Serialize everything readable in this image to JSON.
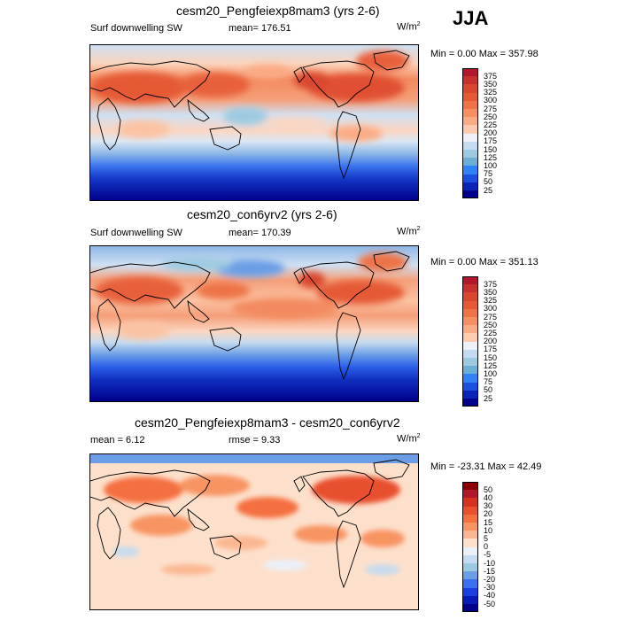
{
  "season": "JJA",
  "chart_data": [
    {
      "type": "heatmap",
      "title": "cesm20_Pengfeiexp8mam3 (yrs 2-6)",
      "left_label": "Surf downwelling SW",
      "stat_label": "mean= 176.51",
      "unit_base": "W/m",
      "unit_exp": "2",
      "minmax": "Min =   0.00 Max = 357.98",
      "mean": 176.51,
      "min": 0.0,
      "max": 357.98,
      "colorbar_levels": [
        "375",
        "350",
        "325",
        "300",
        "275",
        "250",
        "225",
        "200",
        "175",
        "150",
        "125",
        "100",
        "75",
        "50",
        "25"
      ],
      "colorbar_colors": [
        "#b2182b",
        "#c8302d",
        "#d9472f",
        "#e55a35",
        "#ee7347",
        "#f68f62",
        "#fbab84",
        "#fdcbaf",
        "#eef2f8",
        "#c6dbef",
        "#9ecae1",
        "#6baed6",
        "#3182f6",
        "#1a50e0",
        "#0a24b8",
        "#00008b"
      ]
    },
    {
      "type": "heatmap",
      "title": "cesm20_con6yrv2 (yrs 2-6)",
      "left_label": "Surf downwelling SW",
      "stat_label": "mean= 170.39",
      "unit_base": "W/m",
      "unit_exp": "2",
      "minmax": "Min =   0.00 Max = 351.13",
      "mean": 170.39,
      "min": 0.0,
      "max": 351.13,
      "colorbar_levels": [
        "375",
        "350",
        "325",
        "300",
        "275",
        "250",
        "225",
        "200",
        "175",
        "150",
        "125",
        "100",
        "75",
        "50",
        "25"
      ],
      "colorbar_colors": [
        "#b2182b",
        "#c8302d",
        "#d9472f",
        "#e55a35",
        "#ee7347",
        "#f68f62",
        "#fbab84",
        "#fdcbaf",
        "#eef2f8",
        "#c6dbef",
        "#9ecae1",
        "#6baed6",
        "#3182f6",
        "#1a50e0",
        "#0a24b8",
        "#00008b"
      ]
    },
    {
      "type": "heatmap",
      "title": "cesm20_Pengfeiexp8mam3 - cesm20_con6yrv2",
      "left_label": "mean =   6.12",
      "stat_label": "rmse =   9.33",
      "unit_base": "W/m",
      "unit_exp": "2",
      "minmax": "Min = -23.31 Max =  42.49",
      "mean": 6.12,
      "rmse": 9.33,
      "min": -23.31,
      "max": 42.49,
      "colorbar_levels": [
        "50",
        "40",
        "30",
        "20",
        "15",
        "10",
        "5",
        "0",
        "-5",
        "-10",
        "-15",
        "-20",
        "-30",
        "-40",
        "-50"
      ],
      "colorbar_colors": [
        "#8b0000",
        "#b2182b",
        "#d6301f",
        "#e8502e",
        "#f4703f",
        "#f79462",
        "#fbb791",
        "#fde0cc",
        "#eaf1fa",
        "#c6dbef",
        "#9ecae1",
        "#6b9ee6",
        "#3a6ff0",
        "#1a3ee0",
        "#0a1ab8",
        "#00008b"
      ]
    }
  ]
}
